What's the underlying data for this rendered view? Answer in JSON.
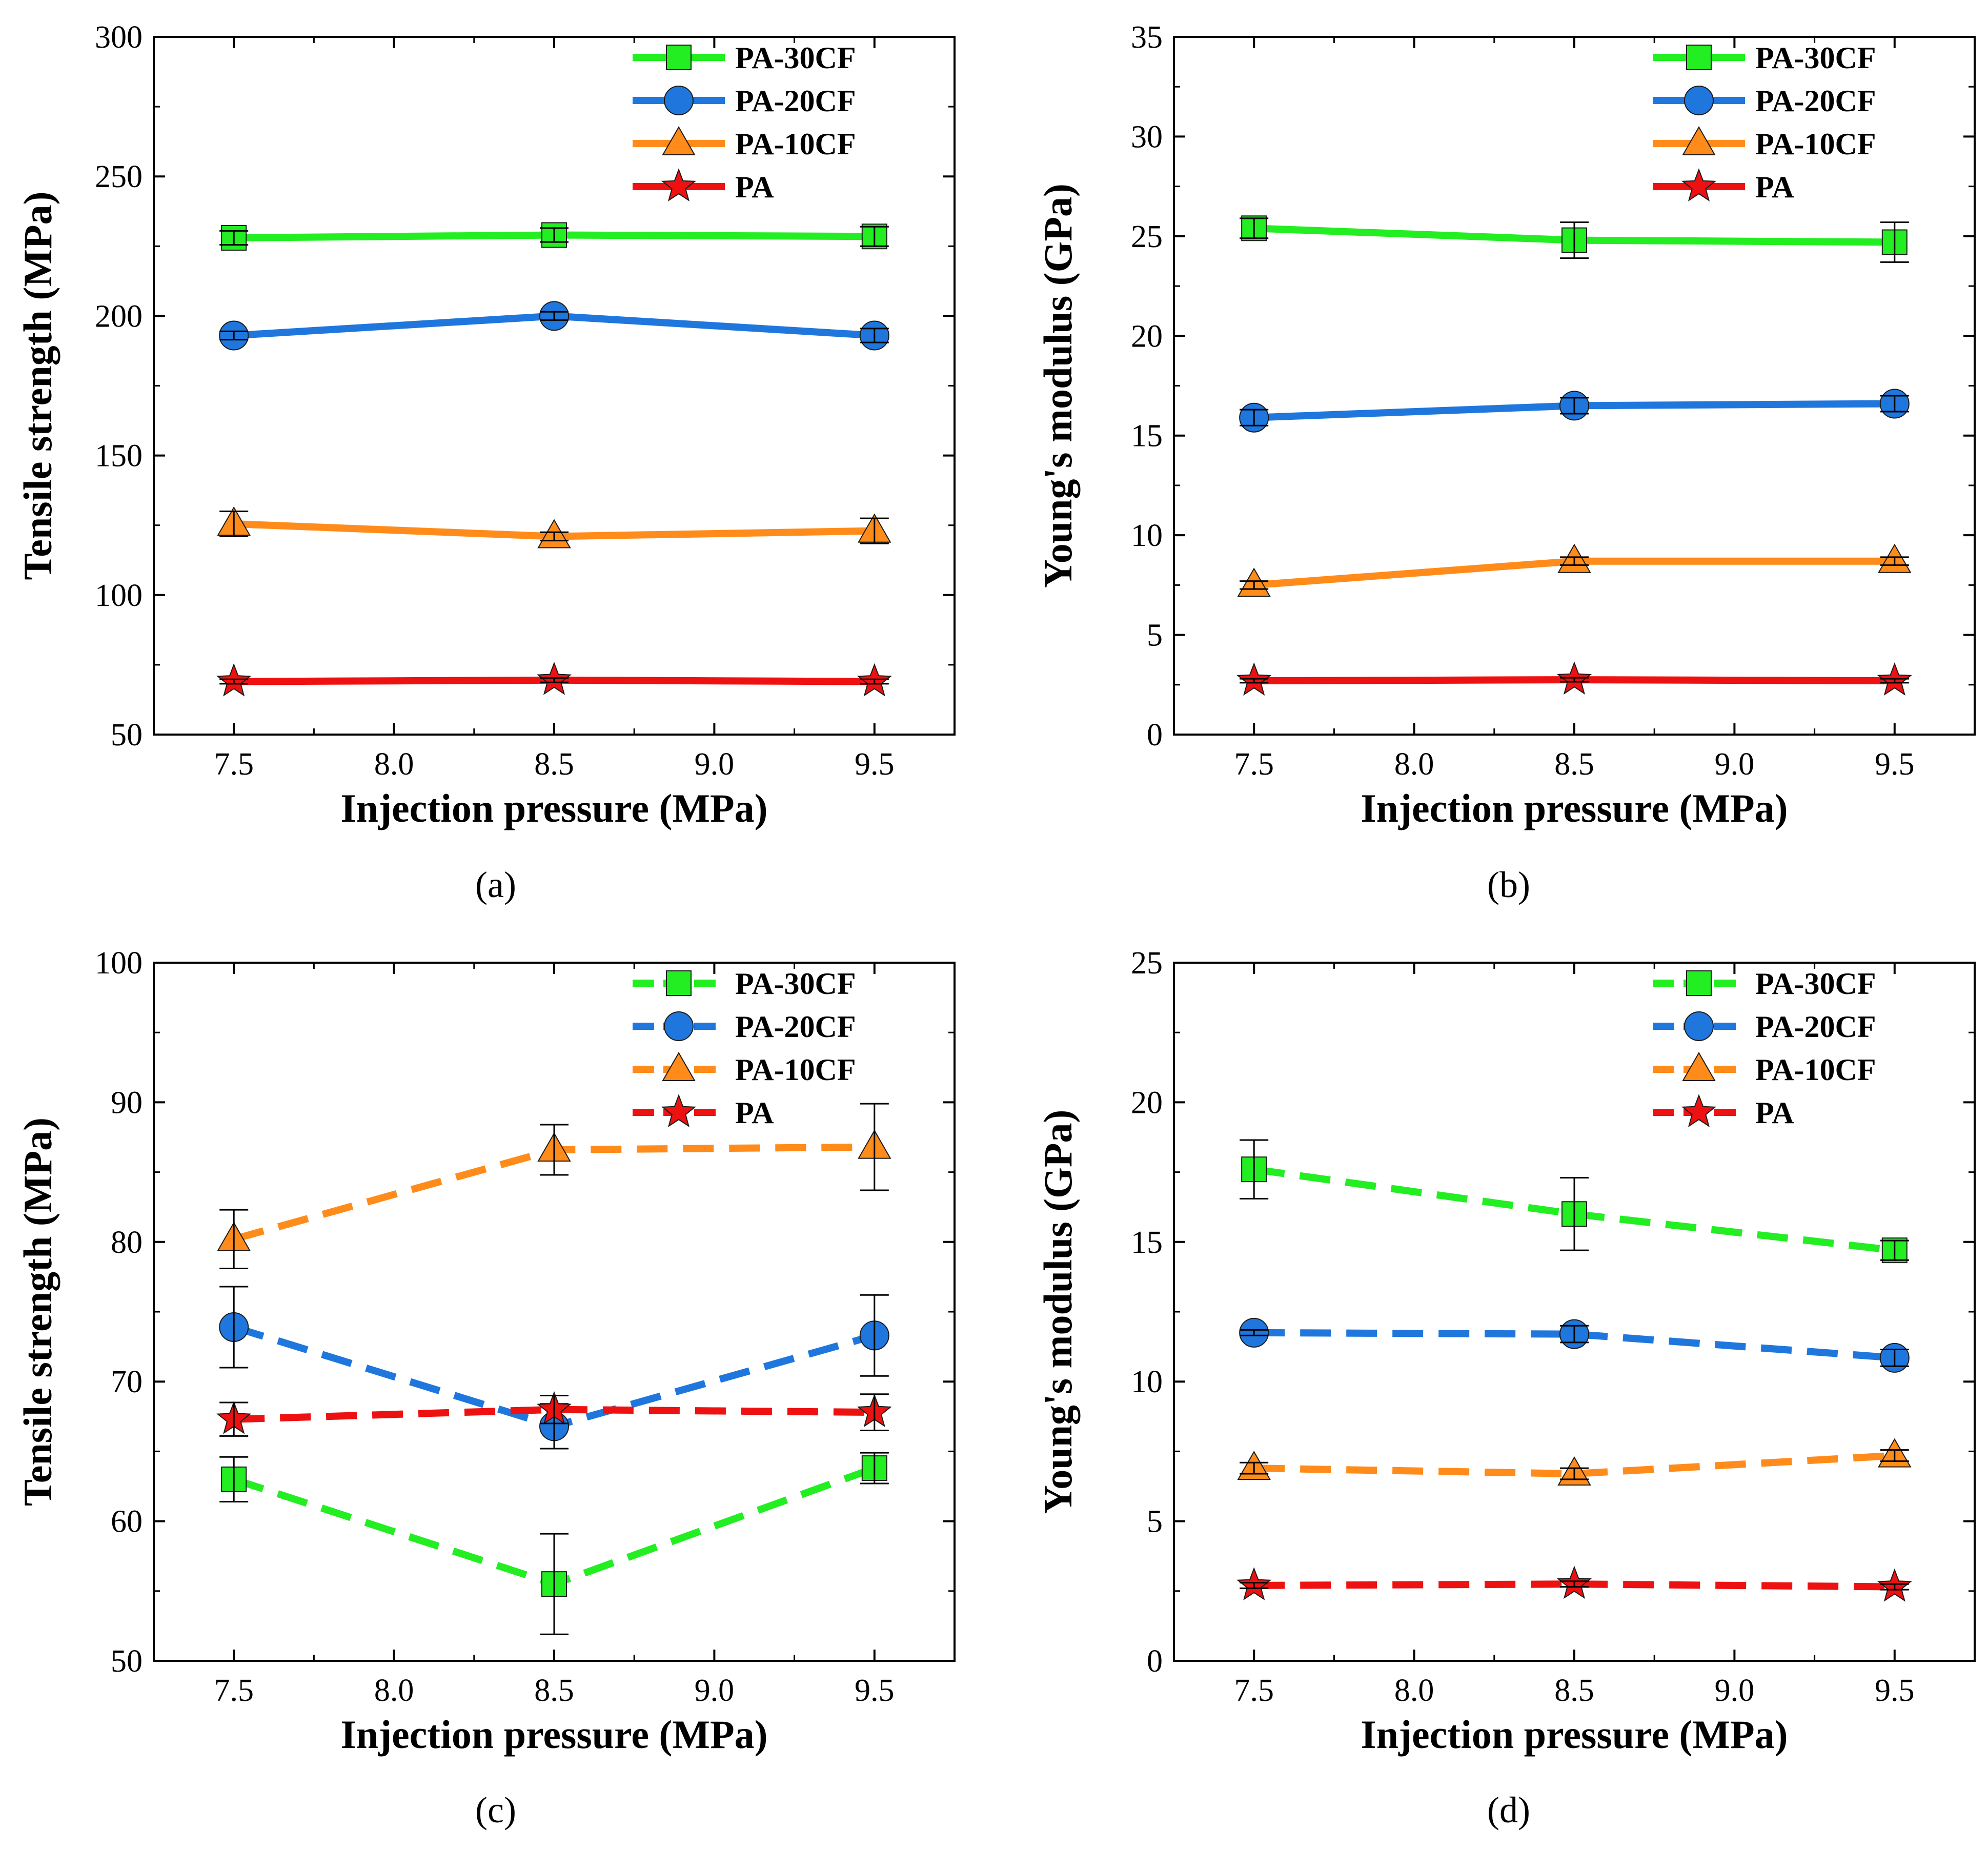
{
  "figure_labels": [
    "(a)",
    "(b)",
    "(c)",
    "(d)"
  ],
  "colors": {
    "PA-30CF": "#22ee22",
    "PA-20CF": "#1f77dd",
    "PA-10CF": "#ff8c1a",
    "PA": "#ee1111"
  },
  "marker_icons": {
    "PA-30CF": "square-marker",
    "PA-20CF": "circle-marker",
    "PA-10CF": "triangle-marker",
    "PA": "star-marker"
  },
  "chart_data": [
    {
      "panel": "(a)",
      "type": "line",
      "line_style": "solid",
      "xlabel": "Injection pressure (MPa)",
      "ylabel": "Tensile strength (MPa)",
      "xlim": [
        7.25,
        9.75
      ],
      "ylim": [
        50,
        300
      ],
      "xticks": [
        7.5,
        8.0,
        8.5,
        9.0,
        9.5
      ],
      "yticks": [
        50,
        100,
        150,
        200,
        250,
        300
      ],
      "xtick_labels": [
        "7.5",
        "8.0",
        "8.5",
        "9.0",
        "9.5"
      ],
      "ytick_labels": [
        "50",
        "100",
        "150",
        "200",
        "250",
        "300"
      ],
      "legend": [
        "PA-30CF",
        "PA-20CF",
        "PA-10CF",
        "PA"
      ],
      "legend_position": "top-right",
      "x": [
        7.5,
        8.5,
        9.5
      ],
      "series": [
        {
          "name": "PA-30CF",
          "marker": "square",
          "values": [
            228,
            229,
            228.5
          ],
          "errors": [
            2.5,
            2.5,
            3.5
          ]
        },
        {
          "name": "PA-20CF",
          "marker": "circle",
          "values": [
            193,
            200,
            193
          ],
          "errors": [
            1.5,
            1.5,
            2.5
          ]
        },
        {
          "name": "PA-10CF",
          "marker": "triangle",
          "values": [
            125.5,
            121,
            123
          ],
          "errors": [
            4.5,
            1.5,
            4.5
          ]
        },
        {
          "name": "PA",
          "marker": "star",
          "values": [
            69,
            69.5,
            69
          ],
          "errors": [
            0.8,
            0.8,
            0.8
          ]
        }
      ]
    },
    {
      "panel": "(b)",
      "type": "line",
      "line_style": "solid",
      "xlabel": "Injection pressure (MPa)",
      "ylabel": "Young's modulus (GPa)",
      "xlim": [
        7.25,
        9.75
      ],
      "ylim": [
        0,
        35
      ],
      "xticks": [
        7.5,
        8.0,
        8.5,
        9.0,
        9.5
      ],
      "yticks": [
        0,
        5,
        10,
        15,
        20,
        25,
        30,
        35
      ],
      "xtick_labels": [
        "7.5",
        "8.0",
        "8.5",
        "9.0",
        "9.5"
      ],
      "ytick_labels": [
        "0",
        "5",
        "10",
        "15",
        "20",
        "25",
        "30",
        "35"
      ],
      "legend": [
        "PA-30CF",
        "PA-20CF",
        "PA-10CF",
        "PA"
      ],
      "legend_position": "top-right",
      "x": [
        7.5,
        8.5,
        9.5
      ],
      "series": [
        {
          "name": "PA-30CF",
          "marker": "square",
          "values": [
            25.4,
            24.8,
            24.7
          ],
          "errors": [
            0.5,
            0.9,
            1.0
          ]
        },
        {
          "name": "PA-20CF",
          "marker": "circle",
          "values": [
            15.9,
            16.5,
            16.6
          ],
          "errors": [
            0.4,
            0.4,
            0.4
          ]
        },
        {
          "name": "PA-10CF",
          "marker": "triangle",
          "values": [
            7.5,
            8.7,
            8.7
          ],
          "errors": [
            0.2,
            0.2,
            0.2
          ]
        },
        {
          "name": "PA",
          "marker": "star",
          "values": [
            2.7,
            2.75,
            2.7
          ],
          "errors": [
            0.1,
            0.1,
            0.1
          ]
        }
      ]
    },
    {
      "panel": "(c)",
      "type": "line",
      "line_style": "dashed",
      "xlabel": "Injection pressure (MPa)",
      "ylabel": "Tensile strength (MPa)",
      "xlim": [
        7.25,
        9.75
      ],
      "ylim": [
        50,
        100
      ],
      "xticks": [
        7.5,
        8.0,
        8.5,
        9.0,
        9.5
      ],
      "yticks": [
        50,
        60,
        70,
        80,
        90,
        100
      ],
      "xtick_labels": [
        "7.5",
        "8.0",
        "8.5",
        "9.0",
        "9.5"
      ],
      "ytick_labels": [
        "50",
        "60",
        "70",
        "80",
        "90",
        "100"
      ],
      "legend": [
        "PA-30CF",
        "PA-20CF",
        "PA-10CF",
        "PA"
      ],
      "legend_position": "top-right",
      "x": [
        7.5,
        8.5,
        9.5
      ],
      "series": [
        {
          "name": "PA-30CF",
          "marker": "square",
          "values": [
            63,
            55.5,
            63.8
          ],
          "errors": [
            1.6,
            3.6,
            1.1
          ]
        },
        {
          "name": "PA-20CF",
          "marker": "circle",
          "values": [
            73.9,
            66.8,
            73.3
          ],
          "errors": [
            2.9,
            1.6,
            2.9
          ]
        },
        {
          "name": "PA-10CF",
          "marker": "triangle",
          "values": [
            80.2,
            86.6,
            86.8
          ],
          "errors": [
            2.1,
            1.8,
            3.1
          ]
        },
        {
          "name": "PA",
          "marker": "star",
          "values": [
            67.3,
            68,
            67.8
          ],
          "errors": [
            1.2,
            1.0,
            1.3
          ]
        }
      ]
    },
    {
      "panel": "(d)",
      "type": "line",
      "line_style": "dashed",
      "xlabel": "Injection pressure (MPa)",
      "ylabel": "Young's modulus (GPa)",
      "xlim": [
        7.25,
        9.75
      ],
      "ylim": [
        0,
        25
      ],
      "xticks": [
        7.5,
        8.0,
        8.5,
        9.0,
        9.5
      ],
      "yticks": [
        0,
        5,
        10,
        15,
        20,
        25
      ],
      "xtick_labels": [
        "7.5",
        "8.0",
        "8.5",
        "9.0",
        "9.5"
      ],
      "ytick_labels": [
        "0",
        "5",
        "10",
        "15",
        "20",
        "25"
      ],
      "legend": [
        "PA-30CF",
        "PA-20CF",
        "PA-10CF",
        "PA"
      ],
      "legend_position": "top-right",
      "x": [
        7.5,
        8.5,
        9.5
      ],
      "series": [
        {
          "name": "PA-30CF",
          "marker": "square",
          "values": [
            17.6,
            16.0,
            14.7
          ],
          "errors": [
            1.05,
            1.3,
            0.35
          ]
        },
        {
          "name": "PA-20CF",
          "marker": "circle",
          "values": [
            11.75,
            11.7,
            10.85
          ],
          "errors": [
            0.1,
            0.3,
            0.3
          ]
        },
        {
          "name": "PA-10CF",
          "marker": "triangle",
          "values": [
            6.9,
            6.7,
            7.35
          ],
          "errors": [
            0.2,
            0.2,
            0.2
          ]
        },
        {
          "name": "PA",
          "marker": "star",
          "values": [
            2.7,
            2.75,
            2.65
          ],
          "errors": [
            0.1,
            0.1,
            0.1
          ]
        }
      ]
    }
  ]
}
